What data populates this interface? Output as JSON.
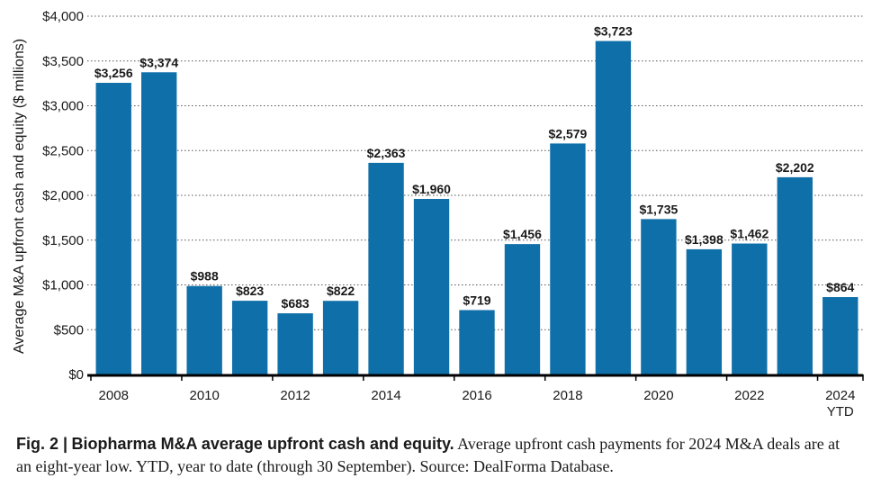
{
  "chart_data": {
    "type": "bar",
    "title": "",
    "xlabel": "",
    "ylabel": "Average M&A upfront cash and equity ($ millions)",
    "ylim": [
      0,
      4000
    ],
    "y_ticks": [
      0,
      500,
      1000,
      1500,
      2000,
      2500,
      3000,
      3500,
      4000
    ],
    "y_tick_labels": [
      "$0",
      "$500",
      "$1,000",
      "$1,500",
      "$2,000",
      "$2,500",
      "$3,000",
      "$3,500",
      "$4,000"
    ],
    "categories": [
      "2008",
      "2009",
      "2010",
      "2011",
      "2012",
      "2013",
      "2014",
      "2015",
      "2016",
      "2017",
      "2018",
      "2019",
      "2020",
      "2021",
      "2022",
      "2023",
      "2024 YTD"
    ],
    "values": [
      3256,
      3374,
      988,
      823,
      683,
      822,
      2363,
      1960,
      719,
      1456,
      2579,
      3723,
      1735,
      1398,
      1462,
      2202,
      864
    ],
    "value_labels": [
      "$3,256",
      "$3,374",
      "$988",
      "$823",
      "$683",
      "$822",
      "$2,363",
      "$1,960",
      "$719",
      "$1,456",
      "$2,579",
      "$3,723",
      "$1,735",
      "$1,398",
      "$1,462",
      "$2,202",
      "$864"
    ],
    "x_tick_labels": [
      {
        "index": 0,
        "lines": [
          "2008"
        ]
      },
      {
        "index": 2,
        "lines": [
          "2010"
        ]
      },
      {
        "index": 4,
        "lines": [
          "2012"
        ]
      },
      {
        "index": 6,
        "lines": [
          "2014"
        ]
      },
      {
        "index": 8,
        "lines": [
          "2016"
        ]
      },
      {
        "index": 10,
        "lines": [
          "2018"
        ]
      },
      {
        "index": 12,
        "lines": [
          "2020"
        ]
      },
      {
        "index": 14,
        "lines": [
          "2022"
        ]
      },
      {
        "index": 16,
        "lines": [
          "2024",
          "YTD"
        ]
      }
    ],
    "grid": "horizontal dotted",
    "bar_color": "#0f6fa8",
    "baseline_color": "#000000"
  },
  "caption": {
    "label": "Fig. 2 |",
    "title": "Biopharma M&A average upfront cash and equity.",
    "text": "Average upfront cash payments for 2024 M&A deals are at an eight-year low. YTD, year to date (through 30 September). Source: DealForma Database."
  }
}
